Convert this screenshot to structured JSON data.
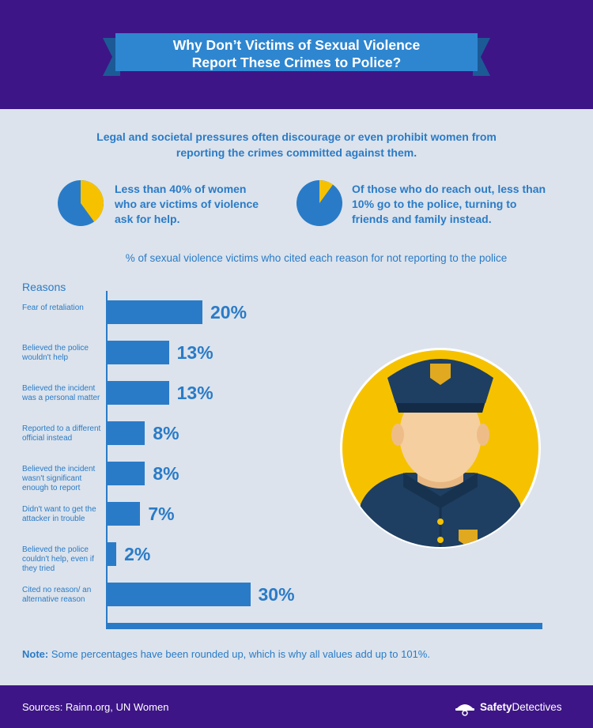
{
  "header": {
    "title_line1": "Why Don’t Victims of Sexual Violence",
    "title_line2": "Report These Crimes to Police?"
  },
  "intro": "Legal and societal pressures often discourage or even prohibit women from reporting the crimes committed against them.",
  "stats": [
    {
      "text": "Less than 40% of women who are victims of violence ask for help.",
      "pie_percent": 40
    },
    {
      "text": "Of those who do reach out, less than 10% go to the police, turning to friends and family instead.",
      "pie_percent": 10
    }
  ],
  "colors": {
    "header_bg": "#3e1587",
    "ribbon": "#2e86d0",
    "ribbon_fold": "#1c5a96",
    "accent_blue": "#2a7bc7",
    "pie_main": "#2a7bc7",
    "pie_slice": "#f6c200",
    "page_bg": "#dce3ec",
    "police_circle": "#f6c200",
    "uniform": "#1e3f61",
    "skin": "#f5cf9f"
  },
  "chart_data": {
    "type": "bar",
    "orientation": "horizontal",
    "title": "% of sexual violence victims who cited each reason for not reporting to the police",
    "ylabel": "Reasons",
    "unit": "%",
    "xlim": [
      0,
      55
    ],
    "categories": [
      "Fear of retaliation",
      "Believed the police wouldn't help",
      "Believed the incident was a personal matter",
      "Reported to a different official instead",
      "Believed the incident wasn't significant enough to report",
      "Didn't want to get the attacker in trouble",
      "Believed the police couldn't help, even if they tried",
      "Cited no reason/ an alternative reason"
    ],
    "values": [
      20,
      13,
      13,
      8,
      8,
      7,
      2,
      30
    ],
    "value_labels": [
      "20%",
      "13%",
      "13%",
      "8%",
      "8%",
      "7%",
      "2%",
      "30%"
    ]
  },
  "note": {
    "label": "Note:",
    "text": " Some percentages have been rounded up, which is why all values add up to 101%."
  },
  "footer": {
    "sources": "Sources: Rainn.org, UN Women",
    "brand_bold": "Safety",
    "brand_rest": "Detectives"
  }
}
